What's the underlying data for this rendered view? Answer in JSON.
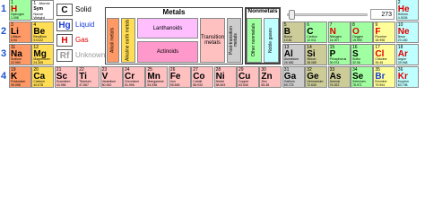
{
  "periods": [
    "1",
    "2",
    "3",
    "4"
  ],
  "key": {
    "number": "1",
    "atomic": "Atomic",
    "sym": "Sym",
    "name": "Name",
    "weight": "Weight"
  },
  "states": [
    {
      "symbol": "C",
      "label": "Solid",
      "color": "#000000"
    },
    {
      "symbol": "Hg",
      "label": "Liquid",
      "color": "#1a3fd6"
    },
    {
      "symbol": "H",
      "label": "Gas",
      "color": "#e00000"
    },
    {
      "symbol": "Rf",
      "label": "Unknown",
      "color": "#999999"
    }
  ],
  "metals": {
    "title": "Metals",
    "groups": [
      {
        "label": "Alkali metals",
        "color": "#ff9966"
      },
      {
        "label": "Alkaline earth metals",
        "color": "#ffdd55"
      },
      {
        "label": "Lanthanoids",
        "color": "#ffbfff"
      },
      {
        "label": "Actinoids",
        "color": "#ff99cc"
      },
      {
        "label": "Transition metals",
        "color": "#ffc0c0"
      },
      {
        "label": "Post-transition metals",
        "color": "#cccccc"
      }
    ]
  },
  "nonmetals": {
    "title": "Nonmetals",
    "groups": [
      {
        "label": "Other nonmetals",
        "color": "#a0ffa0"
      },
      {
        "label": "Noble gases",
        "color": "#c0ffff"
      }
    ]
  },
  "temperature": "273",
  "elements": [
    {
      "number": 1,
      "symbol": "H",
      "name": "Hydrogen",
      "weight": "1.008",
      "color": "#a0ffa0",
      "state_color": "#e00000"
    },
    {
      "number": 2,
      "symbol": "He",
      "name": "Helium",
      "weight": "4.0026",
      "color": "#c0ffff",
      "state_color": "#e00000"
    },
    {
      "number": 3,
      "symbol": "Li",
      "name": "Lithium",
      "weight": "6.94",
      "color": "#ff9966",
      "state_color": "#000000"
    },
    {
      "number": 4,
      "symbol": "Be",
      "name": "Beryllium",
      "weight": "9.0122",
      "color": "#ffdd55",
      "state_color": "#000000"
    },
    {
      "number": 5,
      "symbol": "B",
      "name": "Boron",
      "weight": "10.81",
      "color": "#cccc99",
      "state_color": "#000000"
    },
    {
      "number": 6,
      "symbol": "C",
      "name": "Carbon",
      "weight": "12.011",
      "color": "#a0ffa0",
      "state_color": "#000000"
    },
    {
      "number": 7,
      "symbol": "N",
      "name": "Nitrogen",
      "weight": "14.007",
      "color": "#a0ffa0",
      "state_color": "#e00000"
    },
    {
      "number": 8,
      "symbol": "O",
      "name": "Oxygen",
      "weight": "15.999",
      "color": "#a0ffa0",
      "state_color": "#e00000"
    },
    {
      "number": 9,
      "symbol": "F",
      "name": "Fluorine",
      "weight": "18.998",
      "color": "#ffff99",
      "state_color": "#e00000"
    },
    {
      "number": 10,
      "symbol": "Ne",
      "name": "Neon",
      "weight": "20.180",
      "color": "#c0ffff",
      "state_color": "#e00000"
    },
    {
      "number": 11,
      "symbol": "Na",
      "name": "Sodium",
      "weight": "22.990",
      "color": "#ff9966",
      "state_color": "#000000"
    },
    {
      "number": 12,
      "symbol": "Mg",
      "name": "Magnesium",
      "weight": "24.305",
      "color": "#ffdd55",
      "state_color": "#000000"
    },
    {
      "number": 13,
      "symbol": "Al",
      "name": "Aluminium",
      "weight": "26.982",
      "color": "#cccccc",
      "state_color": "#000000"
    },
    {
      "number": 14,
      "symbol": "Si",
      "name": "Silicon",
      "weight": "28.085",
      "color": "#cccc99",
      "state_color": "#000000"
    },
    {
      "number": 15,
      "symbol": "P",
      "name": "Phosphorus",
      "weight": "30.974",
      "color": "#a0ffa0",
      "state_color": "#000000"
    },
    {
      "number": 16,
      "symbol": "S",
      "name": "Sulfur",
      "weight": "32.06",
      "color": "#a0ffa0",
      "state_color": "#000000"
    },
    {
      "number": 17,
      "symbol": "Cl",
      "name": "Chlorine",
      "weight": "35.45",
      "color": "#ffff99",
      "state_color": "#e00000"
    },
    {
      "number": 18,
      "symbol": "Ar",
      "name": "Argon",
      "weight": "39.948",
      "color": "#c0ffff",
      "state_color": "#e00000"
    },
    {
      "number": 19,
      "symbol": "K",
      "name": "Potassium",
      "weight": "39.098",
      "color": "#ff9966",
      "state_color": "#000000"
    },
    {
      "number": 20,
      "symbol": "Ca",
      "name": "Calcium",
      "weight": "40.078",
      "color": "#ffdd55",
      "state_color": "#000000"
    },
    {
      "number": 21,
      "symbol": "Sc",
      "name": "Scandium",
      "weight": "44.956",
      "color": "#ffc0c0",
      "state_color": "#000000"
    },
    {
      "number": 22,
      "symbol": "Ti",
      "name": "Titanium",
      "weight": "47.867",
      "color": "#ffc0c0",
      "state_color": "#000000"
    },
    {
      "number": 23,
      "symbol": "V",
      "name": "Vanadium",
      "weight": "50.942",
      "color": "#ffc0c0",
      "state_color": "#000000"
    },
    {
      "number": 24,
      "symbol": "Cr",
      "name": "Chromium",
      "weight": "51.996",
      "color": "#ffc0c0",
      "state_color": "#000000"
    },
    {
      "number": 25,
      "symbol": "Mn",
      "name": "Manganese",
      "weight": "54.938",
      "color": "#ffc0c0",
      "state_color": "#000000"
    },
    {
      "number": 26,
      "symbol": "Fe",
      "name": "Iron",
      "weight": "55.845",
      "color": "#ffc0c0",
      "state_color": "#000000"
    },
    {
      "number": 27,
      "symbol": "Co",
      "name": "Cobalt",
      "weight": "58.933",
      "color": "#ffc0c0",
      "state_color": "#000000"
    },
    {
      "number": 28,
      "symbol": "Ni",
      "name": "Nickel",
      "weight": "58.693",
      "color": "#ffc0c0",
      "state_color": "#000000"
    },
    {
      "number": 29,
      "symbol": "Cu",
      "name": "Copper",
      "weight": "63.546",
      "color": "#ffc0c0",
      "state_color": "#000000"
    },
    {
      "number": 30,
      "symbol": "Zn",
      "name": "Zinc",
      "weight": "65.38",
      "color": "#ffc0c0",
      "state_color": "#000000"
    },
    {
      "number": 31,
      "symbol": "Ga",
      "name": "Gallium",
      "weight": "69.723",
      "color": "#cccccc",
      "state_color": "#000000"
    },
    {
      "number": 32,
      "symbol": "Ge",
      "name": "Germanium",
      "weight": "72.630",
      "color": "#cccc99",
      "state_color": "#000000"
    },
    {
      "number": 33,
      "symbol": "As",
      "name": "Arsenic",
      "weight": "74.922",
      "color": "#cccc99",
      "state_color": "#000000"
    },
    {
      "number": 34,
      "symbol": "Se",
      "name": "Selenium",
      "weight": "78.971",
      "color": "#a0ffa0",
      "state_color": "#000000"
    },
    {
      "number": 35,
      "symbol": "Br",
      "name": "Bromine",
      "weight": "79.904",
      "color": "#ffff99",
      "state_color": "#1a3fd6"
    },
    {
      "number": 36,
      "symbol": "Kr",
      "name": "Krypton",
      "weight": "83.798",
      "color": "#c0ffff",
      "state_color": "#e00000"
    }
  ]
}
